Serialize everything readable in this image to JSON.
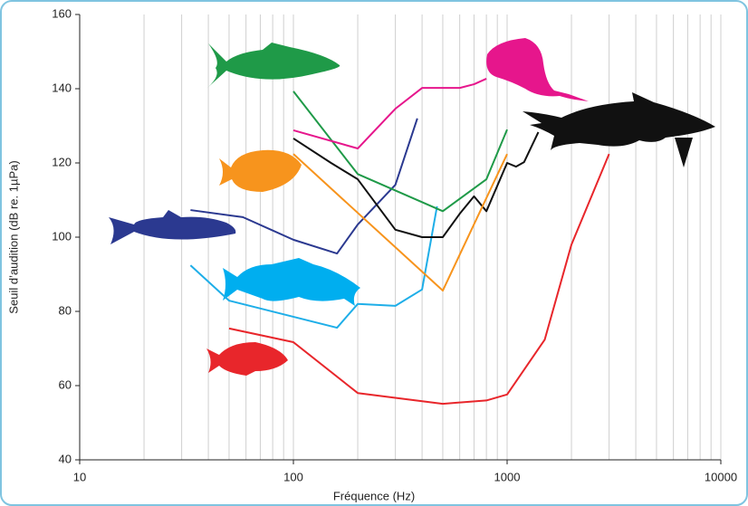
{
  "chart_data": {
    "type": "line",
    "xlabel": "Fréquence (Hz)",
    "ylabel": "Seuil d’audition (dB re. 1µPa)",
    "xscale": "log",
    "xlim": [
      10,
      10000
    ],
    "xticks": [
      10,
      100,
      1000,
      10000
    ],
    "ylim": [
      40,
      160
    ],
    "yticks": [
      40,
      60,
      80,
      100,
      120,
      140,
      160
    ],
    "grid": true,
    "series": [
      {
        "color": "#e8262b",
        "x": [
          50,
          100,
          200,
          500,
          800,
          1000,
          1500,
          2000,
          3000
        ],
        "values": [
          75.4,
          71.7,
          58,
          55.1,
          56,
          57.6,
          72.4,
          98,
          122.4
        ]
      },
      {
        "color": "#1eaee8",
        "x": [
          33,
          50,
          160,
          200,
          300,
          400,
          470
        ],
        "values": [
          92.4,
          82.9,
          75.6,
          82,
          81.5,
          85.9,
          108.3
        ]
      },
      {
        "color": "#2b3990",
        "x": [
          33,
          58,
          100,
          160,
          200,
          300,
          380
        ],
        "values": [
          107.3,
          105.4,
          99.3,
          95.6,
          103.4,
          114.1,
          132
        ]
      },
      {
        "color": "#111111",
        "x": [
          100,
          150,
          200,
          300,
          400,
          500,
          600,
          700,
          800,
          1000,
          1100,
          1200,
          1400
        ],
        "values": [
          126.6,
          120,
          115.6,
          102,
          100,
          100,
          106.3,
          111,
          107,
          120,
          119,
          120.2,
          128.3
        ]
      },
      {
        "color": "#1f9a48",
        "x": [
          100,
          200,
          500,
          800,
          1000
        ],
        "values": [
          139.3,
          117,
          107,
          115.6,
          129
        ]
      },
      {
        "color": "#f7941d",
        "x": [
          100,
          500,
          1000
        ],
        "values": [
          122.4,
          85.6,
          122.4
        ]
      },
      {
        "color": "#e6168c",
        "x": [
          100,
          200,
          300,
          400,
          600,
          700,
          800
        ],
        "values": [
          128.8,
          123.9,
          134.6,
          140.2,
          140.2,
          141.2,
          142.7
        ]
      }
    ]
  }
}
